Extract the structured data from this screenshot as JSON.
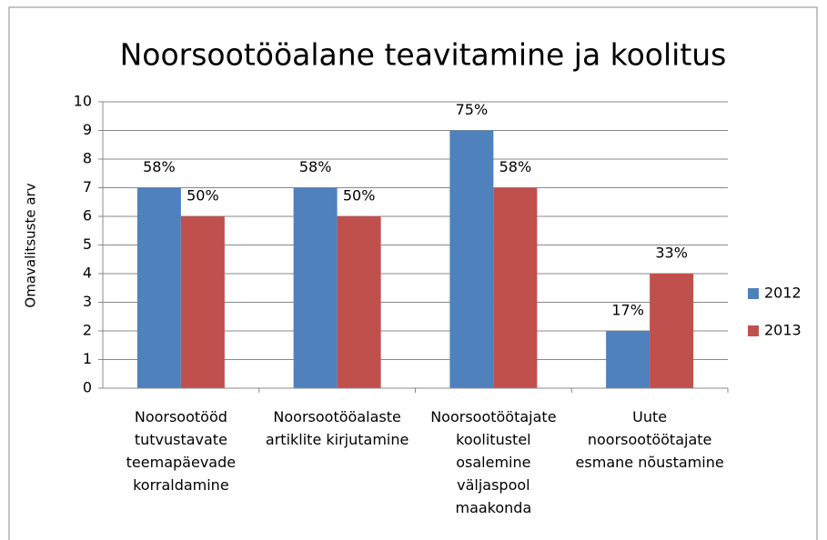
{
  "chart_data": {
    "type": "bar",
    "title": "Noorsootööalane teavitamine ja koolitus",
    "y_label": "Omavalitsuste arv",
    "categories": [
      "Noorsootööd tutvustavate teemapäevade korraldamine",
      "Noorsootööalaste artiklite kirjutamine",
      "Noorsootöötajate koolitustel osalemine väljaspool maakonda",
      "Uute noorsootöötajate esmane nõustamine"
    ],
    "series": [
      {
        "name": "2012",
        "color": "#4f81bd",
        "values": [
          7,
          7,
          9,
          2
        ],
        "value_labels": [
          "58%",
          "58%",
          "75%",
          "17%"
        ]
      },
      {
        "name": "2013",
        "color": "#c0504d",
        "values": [
          6,
          6,
          7,
          4
        ],
        "value_labels": [
          "50%",
          "50%",
          "58%",
          "33%"
        ]
      }
    ],
    "ylim": [
      0,
      10
    ],
    "yticks": [
      0,
      1,
      2,
      3,
      4,
      5,
      6,
      7,
      8,
      9,
      10
    ],
    "grid": true,
    "legend": "right"
  }
}
